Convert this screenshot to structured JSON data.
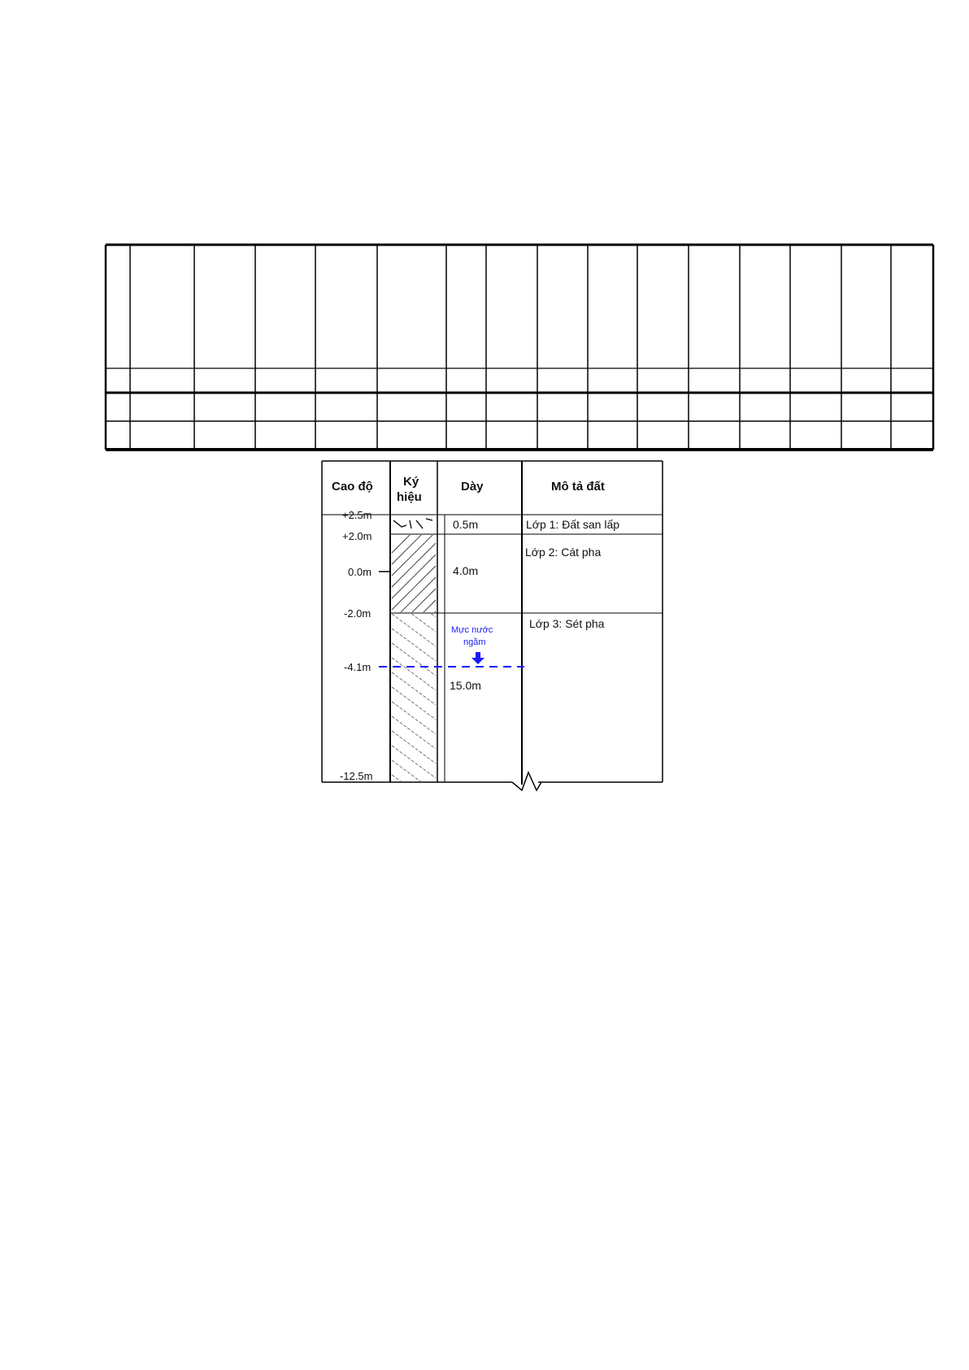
{
  "empty_table": {
    "columns": 16,
    "rows": 4
  },
  "soil_log": {
    "headers": {
      "elevation": "Cao độ",
      "symbol_line1": "Ký",
      "symbol_line2": "hiệu",
      "thickness": "Dày",
      "description": "Mô tả đất"
    },
    "elevations": [
      "+2.5m",
      "+2.0m",
      "0.0m",
      "-2.0m",
      "-4.1m",
      "-12.5m"
    ],
    "layers": [
      {
        "thickness": "0.5m",
        "description": "Lớp 1: Đất san lấp"
      },
      {
        "thickness": "4.0m",
        "description": "Lớp 2:  Cát pha"
      },
      {
        "thickness": "15.0m",
        "description": "Lớp 3: Sét pha"
      }
    ],
    "groundwater": {
      "label_line1": "Mực nước",
      "label_line2": "ngầm",
      "color": "#1a1aff"
    }
  }
}
